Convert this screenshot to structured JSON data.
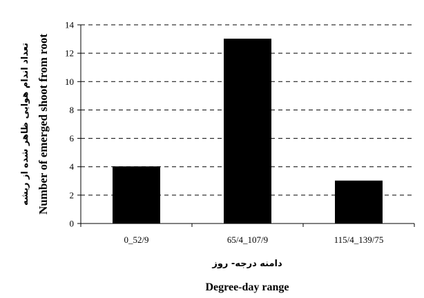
{
  "chart_data": {
    "type": "bar",
    "categories": [
      "0_52/9",
      "65/4_107/9",
      "115/4_139/75"
    ],
    "values": [
      4,
      13,
      3
    ],
    "ylim": [
      0,
      14
    ],
    "yticks": [
      0,
      2,
      4,
      6,
      8,
      10,
      12,
      14
    ],
    "ylabel_fa": "تعداد اندام هوایی ظاهر شده از ریشه",
    "ylabel_en": "Number of emerged shoot from root",
    "xlabel_fa": "دامنه درجه- روز",
    "xlabel_en": "Degree-day range",
    "grid": "y-dashed",
    "bar_color": "#000000"
  }
}
